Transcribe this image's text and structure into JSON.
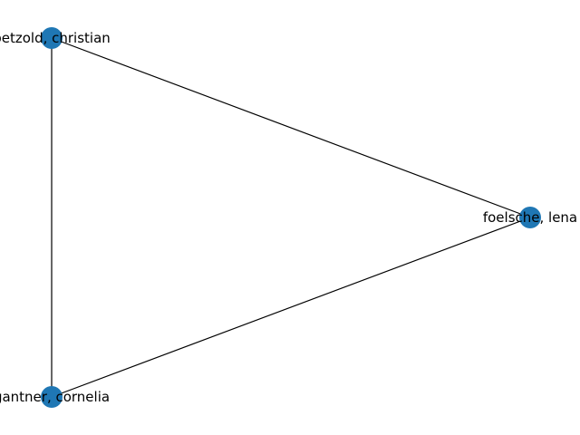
{
  "graph": {
    "nodes": [
      {
        "id": "petzold",
        "label": "petzold, christian"
      },
      {
        "id": "foelsche",
        "label": "foelsche, lena"
      },
      {
        "id": "gantner",
        "label": "gantner, cornelia"
      }
    ],
    "edges": [
      {
        "source": "petzold",
        "target": "foelsche"
      },
      {
        "source": "petzold",
        "target": "gantner"
      },
      {
        "source": "foelsche",
        "target": "gantner"
      }
    ],
    "colors": {
      "node": "#1f77b4",
      "edge": "#000000",
      "label": "#000000",
      "background": "#ffffff"
    }
  }
}
